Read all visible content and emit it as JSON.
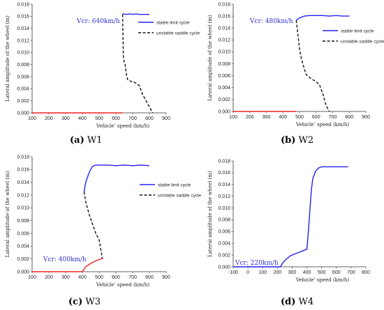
{
  "chart_data": [
    {
      "id": "W1",
      "type": "line",
      "caption_letter": "(a)",
      "caption_rest": " W1",
      "xlabel": "Vehicle’ speed (km/h)",
      "ylabel": "Lateral amplitude of the wheel (m)",
      "xlim": [
        100,
        900
      ],
      "ylim": [
        0,
        0.018
      ],
      "xticks": [
        100,
        200,
        300,
        400,
        500,
        600,
        700,
        800,
        900
      ],
      "yticks": [
        "0.000",
        "0.002",
        "0.004",
        "0.006",
        "0.008",
        "0.010",
        "0.012",
        "0.014",
        "0.016",
        "0.018"
      ],
      "annotation": "Vcr: 640km/h",
      "legend": [
        "stable limit cycle",
        "unstable saddle cycle"
      ],
      "series": [
        {
          "name": "stable limit cycle",
          "color": "#2222ee",
          "dash": false,
          "x": [
            640,
            645,
            660,
            680,
            700,
            720,
            740,
            760,
            780,
            800
          ],
          "y": [
            0.0163,
            0.0164,
            0.0163,
            0.0164,
            0.0163,
            0.0164,
            0.0163,
            0.0163,
            0.0163,
            0.0163
          ]
        },
        {
          "name": "unstable saddle cycle",
          "color": "#111111",
          "dash": true,
          "x": [
            640,
            642,
            645,
            655,
            662,
            670,
            690,
            700,
            715,
            740,
            760,
            790,
            820
          ],
          "y": [
            0.0163,
            0.013,
            0.009,
            0.008,
            0.0065,
            0.0055,
            0.0052,
            0.0052,
            0.005,
            0.0045,
            0.003,
            0.0015,
            0.0
          ]
        },
        {
          "name": "",
          "color": "#ee2222",
          "dash": false,
          "x": [
            100,
            640
          ],
          "y": [
            0.0,
            0.0
          ]
        }
      ]
    },
    {
      "id": "W2",
      "type": "line",
      "caption_letter": "(b)",
      "caption_rest": " W2",
      "xlabel": "Vehicle’ speed (km/h)",
      "ylabel": "Lateral amplitude of the wheel (m)",
      "xlim": [
        100,
        900
      ],
      "ylim": [
        0,
        0.018
      ],
      "xticks": [
        100,
        200,
        300,
        400,
        500,
        600,
        700,
        800,
        900
      ],
      "yticks": [
        "0.000",
        "0.002",
        "0.004",
        "0.006",
        "0.008",
        "0.010",
        "0.012",
        "0.014",
        "0.016",
        "0.018"
      ],
      "annotation": "Vcr: 480km/h",
      "legend": [
        "stable limit cycle",
        "unstable saddle cycle"
      ],
      "series": [
        {
          "name": "stable limit cycle",
          "color": "#2222ee",
          "dash": false,
          "x": [
            480,
            500,
            530,
            560,
            600,
            640,
            680,
            720,
            760,
            800
          ],
          "y": [
            0.0153,
            0.0157,
            0.016,
            0.0161,
            0.0161,
            0.0161,
            0.016,
            0.0161,
            0.016,
            0.016
          ]
        },
        {
          "name": "unstable saddle cycle",
          "color": "#111111",
          "dash": true,
          "x": [
            480,
            490,
            500,
            510,
            525,
            540,
            570,
            600,
            620,
            640,
            660,
            680
          ],
          "y": [
            0.0153,
            0.013,
            0.0105,
            0.009,
            0.0075,
            0.0062,
            0.0055,
            0.005,
            0.0045,
            0.003,
            0.001,
            0.0
          ]
        },
        {
          "name": "",
          "color": "#ee2222",
          "dash": false,
          "x": [
            100,
            480
          ],
          "y": [
            0.0,
            0.0
          ]
        }
      ]
    },
    {
      "id": "W3",
      "type": "line",
      "caption_letter": "(c)",
      "caption_rest": " W3",
      "xlabel": "Vehicle’ speed (km/h)",
      "ylabel": "Lateral amplitude of the wheel (m)",
      "xlim": [
        100,
        900
      ],
      "ylim": [
        0,
        0.018
      ],
      "xticks": [
        100,
        200,
        300,
        400,
        500,
        600,
        700,
        800,
        900
      ],
      "yticks": [
        "0.000",
        "0.002",
        "0.004",
        "0.006",
        "0.008",
        "0.010",
        "0.012",
        "0.014",
        "0.016",
        "0.018"
      ],
      "annotation": "Vcr: 400km/h",
      "legend": [
        "stable limit cycle",
        "unstable saddle cycle"
      ],
      "series": [
        {
          "name": "stable limit cycle",
          "color": "#2222ee",
          "dash": false,
          "x": [
            410,
            420,
            440,
            460,
            480,
            500,
            550,
            600,
            650,
            700,
            750,
            800
          ],
          "y": [
            0.0125,
            0.014,
            0.0155,
            0.0165,
            0.0167,
            0.0167,
            0.0167,
            0.0166,
            0.0167,
            0.0166,
            0.0167,
            0.0166
          ]
        },
        {
          "name": "unstable saddle cycle",
          "color": "#111111",
          "dash": true,
          "x": [
            410,
            420,
            440,
            460,
            480,
            500,
            520
          ],
          "y": [
            0.0125,
            0.011,
            0.009,
            0.0075,
            0.006,
            0.005,
            0.002
          ]
        },
        {
          "name": "",
          "color": "#ee2222",
          "dash": false,
          "x": [
            100,
            400,
            420,
            450,
            480,
            520
          ],
          "y": [
            0.0,
            0.0,
            0.0008,
            0.0013,
            0.0017,
            0.0021
          ]
        }
      ]
    },
    {
      "id": "W4",
      "type": "line",
      "caption_letter": "(d)",
      "caption_rest": " W4",
      "xlabel": "Vehicle’ speed (km/h)",
      "ylabel": "Lateral amplitude of the wheel (m)",
      "xlim": [
        -100,
        800
      ],
      "ylim": [
        0,
        0.018
      ],
      "xticks": [
        -100,
        0,
        100,
        200,
        300,
        400,
        500,
        600,
        700,
        800
      ],
      "yticks": [
        "0.000",
        "0.002",
        "0.004",
        "0.006",
        "0.008",
        "0.010",
        "0.012",
        "0.014",
        "0.016",
        "0.018"
      ],
      "annotation": "Vcr: 220km/h",
      "legend": [],
      "series": [
        {
          "name": "",
          "color": "#2222ee",
          "dash": false,
          "x": [
            -100,
            220,
            240,
            260,
            290,
            330,
            370,
            400,
            410,
            420,
            430,
            440,
            460,
            480,
            500,
            550,
            600,
            680
          ],
          "y": [
            0.0,
            0.0,
            0.0008,
            0.0013,
            0.0019,
            0.0023,
            0.0027,
            0.003,
            0.006,
            0.0095,
            0.013,
            0.015,
            0.0163,
            0.0168,
            0.017,
            0.017,
            0.017,
            0.017
          ]
        }
      ]
    }
  ]
}
